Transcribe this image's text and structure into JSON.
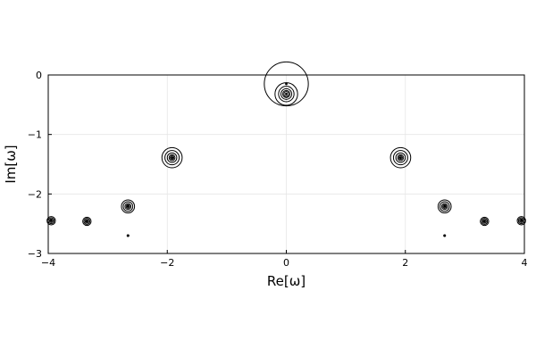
{
  "chart_data": {
    "type": "scatter",
    "xlabel": "Re[ω]",
    "ylabel": "Im[ω]",
    "xlim": [
      -4,
      4
    ],
    "ylim": [
      -3,
      0
    ],
    "xticks": [
      -4,
      -2,
      0,
      2,
      4
    ],
    "xtick_labels": [
      "−4",
      "−2",
      "0",
      "2",
      "4"
    ],
    "yticks": [
      -3,
      -2,
      -1,
      0
    ],
    "ytick_labels": [
      "−3",
      "−2",
      "−1",
      "0"
    ],
    "grid": true,
    "legend": false,
    "series": [
      {
        "points": [
          {
            "x": -3.95,
            "y": -2.45,
            "radii": [
              0.07,
              0.05,
              0.03
            ]
          },
          {
            "x": -3.35,
            "y": -2.46,
            "radii": [
              0.07,
              0.05,
              0.03
            ]
          },
          {
            "x": -2.66,
            "y": -2.21,
            "radii": [
              0.11,
              0.08,
              0.05,
              0.03
            ]
          },
          {
            "x": -2.66,
            "y": -2.7,
            "radii": [
              0.01
            ]
          },
          {
            "x": -1.92,
            "y": -1.39,
            "radii": [
              0.17,
              0.12,
              0.08,
              0.05,
              0.03
            ]
          },
          {
            "x": 0.0,
            "y": -0.15,
            "radii": [
              0.37
            ]
          },
          {
            "x": 0.0,
            "y": -0.32,
            "radii": [
              0.19,
              0.13,
              0.09,
              0.06,
              0.04
            ]
          },
          {
            "x": 1.92,
            "y": -1.39,
            "radii": [
              0.17,
              0.12,
              0.08,
              0.05,
              0.03
            ]
          },
          {
            "x": 2.66,
            "y": -2.21,
            "radii": [
              0.11,
              0.08,
              0.05,
              0.03
            ]
          },
          {
            "x": 2.66,
            "y": -2.7,
            "radii": [
              0.01
            ]
          },
          {
            "x": 3.33,
            "y": -2.46,
            "radii": [
              0.07,
              0.05,
              0.03
            ]
          },
          {
            "x": 3.95,
            "y": -2.45,
            "radii": [
              0.07,
              0.05,
              0.03
            ]
          }
        ]
      }
    ]
  }
}
